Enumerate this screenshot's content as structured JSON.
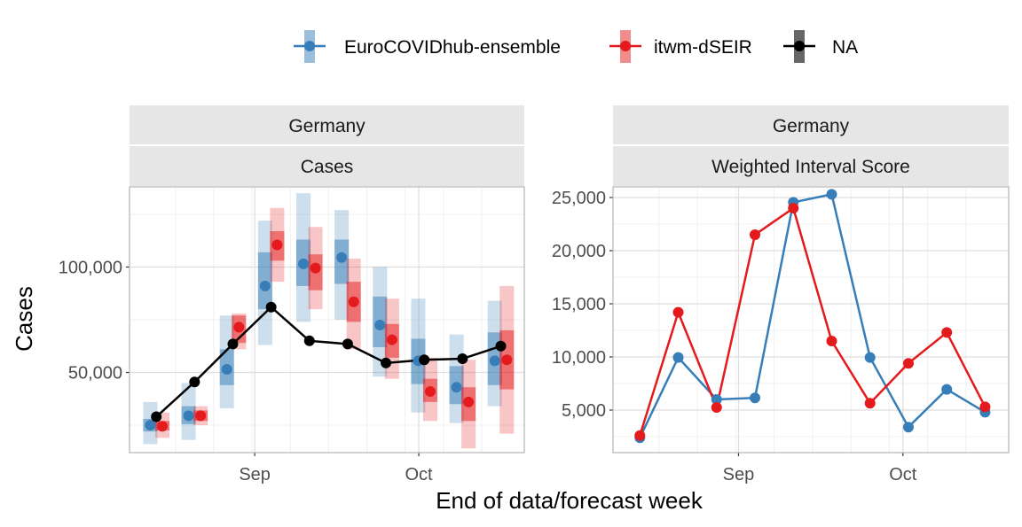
{
  "chart_data": {
    "type": "line",
    "xlabel": "End of data/forecast week",
    "legend": {
      "position": "top",
      "entries": [
        {
          "name": "EuroCOVIDhub-ensemble",
          "color": "#377EB8"
        },
        {
          "name": "itwm-dSEIR",
          "color": "#E41A1C"
        },
        {
          "name": "NA",
          "color": "#000000"
        }
      ]
    },
    "x_ticks": [
      {
        "label": "Sep",
        "x": "2021-09-01"
      },
      {
        "label": "Oct",
        "x": "2021-10-01"
      }
    ],
    "x": [
      "2021-08-14",
      "2021-08-21",
      "2021-08-28",
      "2021-09-04",
      "2021-09-11",
      "2021-09-18",
      "2021-09-25",
      "2021-10-02",
      "2021-10-09",
      "2021-10-16"
    ],
    "panels": [
      {
        "strip": [
          "Germany",
          "Cases"
        ],
        "ylabel": "Cases",
        "ylim": [
          12000,
          138000
        ],
        "y_ticks": [
          50000,
          100000
        ],
        "y_tick_labels": [
          "50,000",
          "100,000"
        ],
        "observed": {
          "name": "NA",
          "values": [
            29000,
            45500,
            63500,
            81000,
            65000,
            63500,
            54500,
            56000,
            56500,
            62500
          ]
        },
        "forecasts": [
          {
            "name": "EuroCOVIDhub-ensemble",
            "median": [
              25000,
              29500,
              51500,
              91000,
              101500,
              104500,
              72500,
              55500,
              43000,
              55500
            ],
            "inner": [
              [
                22000,
                28000
              ],
              [
                25500,
                34000
              ],
              [
                44000,
                61000
              ],
              [
                80000,
                107000
              ],
              [
                91000,
                113000
              ],
              [
                92000,
                113000
              ],
              [
                62000,
                86000
              ],
              [
                44500,
                66000
              ],
              [
                35000,
                53000
              ],
              [
                44000,
                69000
              ]
            ],
            "outer": [
              [
                16000,
                36000
              ],
              [
                18000,
                45000
              ],
              [
                33000,
                77000
              ],
              [
                63000,
                122000
              ],
              [
                74000,
                135000
              ],
              [
                75000,
                127000
              ],
              [
                48000,
                100000
              ],
              [
                31000,
                85000
              ],
              [
                26000,
                68000
              ],
              [
                34000,
                84000
              ]
            ]
          },
          {
            "name": "itwm-dSEIR",
            "median": [
              24500,
              29500,
              71500,
              110500,
              99500,
              83500,
              65500,
              41000,
              36000,
              56000
            ],
            "inner": [
              [
                22500,
                27000
              ],
              [
                27000,
                32000
              ],
              [
                64000,
                77000
              ],
              [
                103000,
                117000
              ],
              [
                89000,
                106000
              ],
              [
                74000,
                93000
              ],
              [
                57000,
                73000
              ],
              [
                36000,
                47000
              ],
              [
                27000,
                43000
              ],
              [
                42000,
                70000
              ]
            ],
            "outer": [
              [
                19000,
                31000
              ],
              [
                25000,
                34000
              ],
              [
                61000,
                78000
              ],
              [
                93000,
                128000
              ],
              [
                80000,
                119000
              ],
              [
                61000,
                104000
              ],
              [
                47000,
                85000
              ],
              [
                27000,
                57000
              ],
              [
                14000,
                56000
              ],
              [
                21000,
                91000
              ]
            ]
          }
        ]
      },
      {
        "strip": [
          "Germany",
          "Weighted Interval Score"
        ],
        "ylim": [
          1000,
          26000
        ],
        "y_ticks": [
          5000,
          10000,
          15000,
          20000,
          25000
        ],
        "y_tick_labels": [
          "5,000",
          "10,000",
          "15,000",
          "20,000",
          "25,000"
        ],
        "series": [
          {
            "name": "EuroCOVIDhub-ensemble",
            "values": [
              2400,
              9950,
              6000,
              6150,
              24550,
              25300,
              9950,
              3400,
              6950,
              4800
            ]
          },
          {
            "name": "itwm-dSEIR",
            "values": [
              2600,
              14200,
              5250,
              21500,
              24000,
              11500,
              5650,
              9400,
              12300,
              5300
            ]
          }
        ]
      }
    ]
  }
}
